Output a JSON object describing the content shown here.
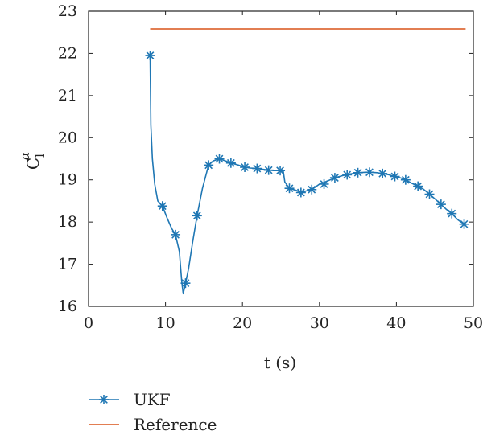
{
  "chart_data": {
    "type": "line",
    "title": "",
    "xlabel": "t (s)",
    "ylabel_main": "C",
    "ylabel_sub": "l",
    "ylabel_sup": "α",
    "xlim": [
      0,
      50
    ],
    "ylim": [
      16,
      23
    ],
    "xticks": [
      0,
      10,
      20,
      30,
      40,
      50
    ],
    "yticks": [
      16,
      17,
      18,
      19,
      20,
      21,
      22,
      23
    ],
    "grid": false,
    "legend_position": "bottom",
    "series": [
      {
        "name": "UKF",
        "color": "#1f77b4",
        "marker": "asterisk",
        "x": [
          8.0,
          8.1,
          8.3,
          8.6,
          9.0,
          9.6,
          10.2,
          10.8,
          11.3,
          11.8,
          12.1,
          12.3,
          12.6,
          13.0,
          13.5,
          14.1,
          14.8,
          15.6,
          16.2,
          17.0,
          17.8,
          18.5,
          19.5,
          20.3,
          21.0,
          21.9,
          23.0,
          24.0,
          24.9,
          25.3,
          25.5,
          26.1,
          27.0,
          27.6,
          28.5,
          29.0,
          30.0,
          31.0,
          32.0,
          33.0,
          34.0,
          35.0,
          36.0,
          36.7,
          37.5,
          38.2,
          39.0,
          39.8,
          40.5,
          41.2,
          42.0,
          42.8,
          43.5,
          44.3,
          45.0,
          45.8,
          46.5,
          47.2,
          48.0,
          48.8
        ],
        "y": [
          21.95,
          20.3,
          19.5,
          18.9,
          18.5,
          18.38,
          18.1,
          17.85,
          17.7,
          17.3,
          16.6,
          16.3,
          16.55,
          16.9,
          17.5,
          18.15,
          18.8,
          19.35,
          19.45,
          19.5,
          19.45,
          19.4,
          19.35,
          19.3,
          19.28,
          19.27,
          19.24,
          19.22,
          19.22,
          19.2,
          18.95,
          18.8,
          18.75,
          18.7,
          18.75,
          18.77,
          18.9,
          18.97,
          19.05,
          19.1,
          19.14,
          19.17,
          19.18,
          19.18,
          19.17,
          19.15,
          19.12,
          19.08,
          19.05,
          19.0,
          18.92,
          18.85,
          18.78,
          18.66,
          18.55,
          18.42,
          18.3,
          18.2,
          18.05,
          17.95
        ],
        "marker_x": [
          8.0,
          9.6,
          11.3,
          12.6,
          14.1,
          15.6,
          17.0,
          18.5,
          20.3,
          21.9,
          23.4,
          24.9,
          26.1,
          27.6,
          29.0,
          30.6,
          32.0,
          33.6,
          35.0,
          36.5,
          38.2,
          39.8,
          41.2,
          42.8,
          44.3,
          45.8,
          47.2,
          48.8
        ],
        "marker_y": [
          21.95,
          18.38,
          17.7,
          16.55,
          18.15,
          19.35,
          19.5,
          19.4,
          19.3,
          19.27,
          19.23,
          19.22,
          18.8,
          18.7,
          18.77,
          18.9,
          19.05,
          19.12,
          19.17,
          19.18,
          19.15,
          19.08,
          19.0,
          18.85,
          18.66,
          18.42,
          18.2,
          17.95
        ]
      },
      {
        "name": "Reference",
        "color": "#d95319",
        "marker": "none",
        "x": [
          8.0,
          49.0
        ],
        "y": [
          22.58,
          22.58
        ]
      }
    ]
  }
}
